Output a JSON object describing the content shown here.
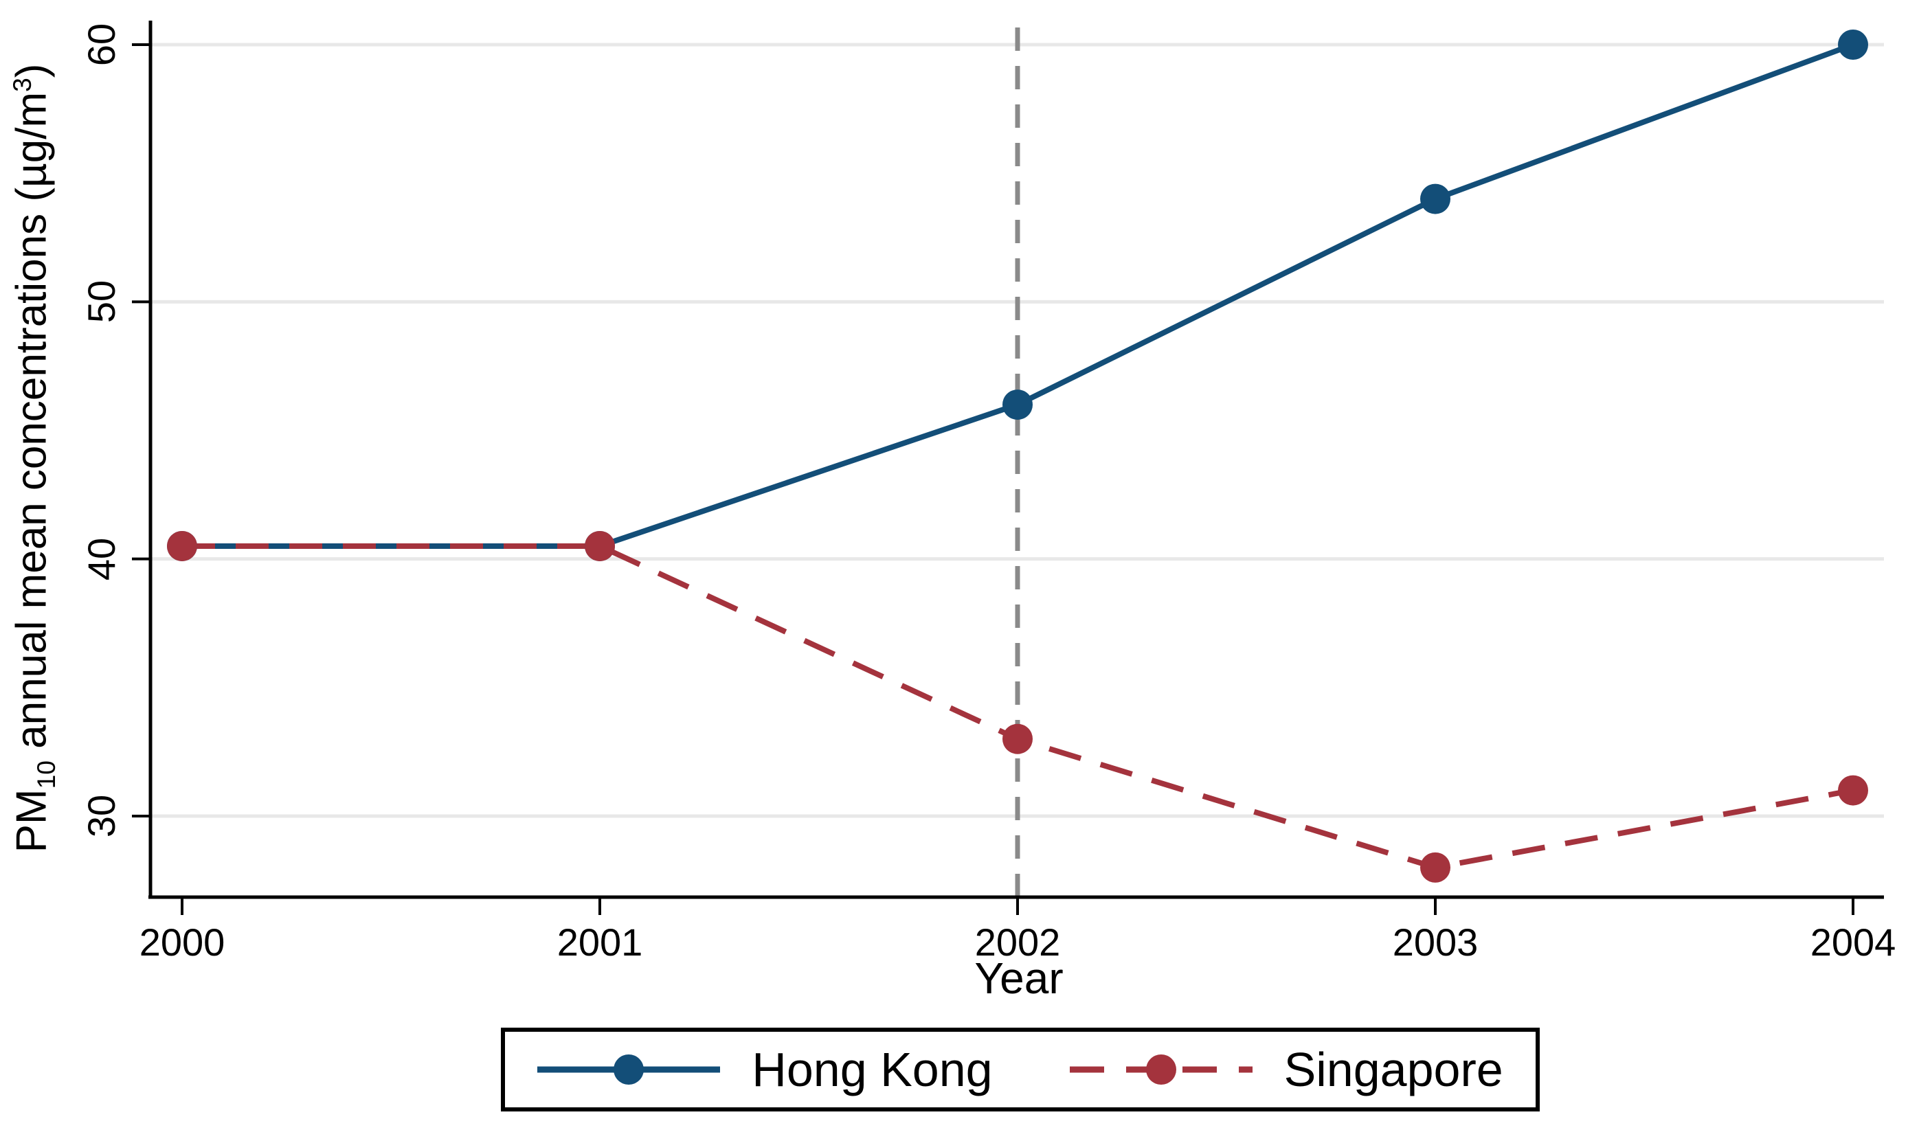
{
  "chart_data": {
    "type": "line",
    "title": "",
    "xlabel": "Year",
    "ylabel_text": "PM10 annual mean concentrations (µg/m3)",
    "ylabel_parts": {
      "p1": "PM",
      "sub": "10",
      "p2": " annual mean concentrations (µg/m",
      "sup": "3",
      "p3": ")"
    },
    "x": [
      2000,
      2001,
      2002,
      2003,
      2004
    ],
    "x_tick_labels": [
      "2000",
      "2001",
      "2002",
      "2003",
      "2004"
    ],
    "y_ticks": [
      30,
      40,
      50,
      60
    ],
    "y_tick_labels_top_down": [
      "60",
      "50",
      "40",
      "30"
    ],
    "xlim": [
      2000,
      2004
    ],
    "ylim": [
      26.9,
      60.9
    ],
    "grid": "horizontal",
    "legend_position": "bottom",
    "series": [
      {
        "name": "Hong Kong",
        "color": "#134E78",
        "line_style": "solid",
        "marker": "circle",
        "values": [
          40.5,
          40.5,
          46,
          54,
          60
        ]
      },
      {
        "name": "Singapore",
        "color": "#A4333D",
        "line_style": "dashed",
        "marker": "circle",
        "values": [
          40.5,
          40.5,
          33,
          28,
          31
        ]
      }
    ],
    "vline": {
      "x": 2002,
      "color": "#8A8A8A",
      "style": "dashed"
    }
  },
  "colors": {
    "background": "#FFFFFF",
    "gridline": "#E8E8E8",
    "axis": "#000000"
  }
}
